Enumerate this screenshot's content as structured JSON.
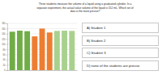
{
  "question": [
    "Three students measure the volume of a liquid using a graduated cylinder. In a",
    "separate experiment, the actual value volume of the liquid is 152 mL. Which set of",
    "data is the most precise?"
  ],
  "options": [
    "A) Student 1",
    "B) Student 2",
    "C) Student 3",
    "D) none of the students are precise"
  ],
  "chart_data": {
    "type": "bar",
    "categories": [
      null,
      null,
      null,
      null,
      null,
      null,
      null,
      null,
      null
    ],
    "values": [
      148,
      152,
      150,
      130,
      160,
      145,
      151,
      152,
      151
    ],
    "colors": [
      "#70ad47",
      "#70ad47",
      "#70ad47",
      "#ed7d31",
      "#ed7d31",
      "#ed7d31",
      "#a9d18e",
      "#a9d18e",
      "#a9d18e"
    ],
    "ylim": [
      0,
      180
    ],
    "yticks": [
      0,
      20,
      40,
      60,
      80,
      100,
      120,
      140,
      160,
      180
    ],
    "grid": true
  }
}
